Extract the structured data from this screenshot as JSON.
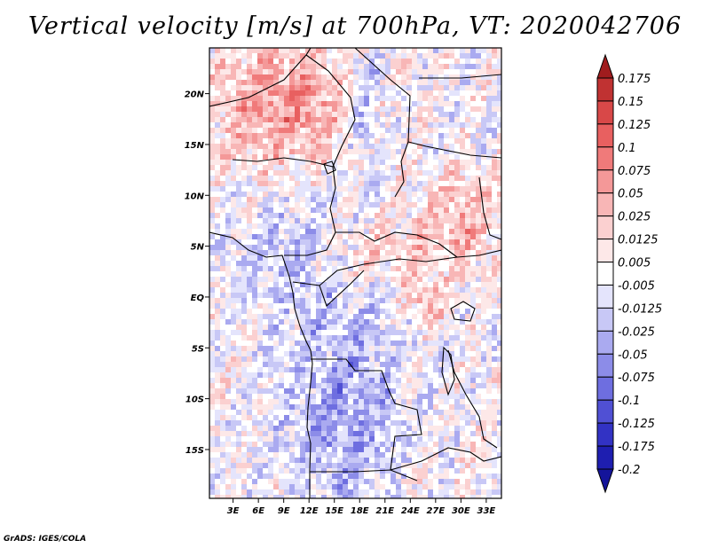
{
  "chart_data": {
    "type": "heatmap",
    "title": "Vertical velocity [m/s] at 700hPa, VT: 2020042706",
    "variable": "Vertical velocity",
    "units": "m/s",
    "level": "700hPa",
    "valid_time": "2020042706",
    "x_ticks": [
      {
        "value": 3,
        "label": "3E"
      },
      {
        "value": 6,
        "label": "6E"
      },
      {
        "value": 9,
        "label": "9E"
      },
      {
        "value": 12,
        "label": "12E"
      },
      {
        "value": 15,
        "label": "15E"
      },
      {
        "value": 18,
        "label": "18E"
      },
      {
        "value": 21,
        "label": "21E"
      },
      {
        "value": 24,
        "label": "24E"
      },
      {
        "value": 27,
        "label": "27E"
      },
      {
        "value": 30,
        "label": "30E"
      },
      {
        "value": 33,
        "label": "33E"
      }
    ],
    "y_ticks": [
      {
        "value": 20,
        "label": "20N"
      },
      {
        "value": 15,
        "label": "15N"
      },
      {
        "value": 10,
        "label": "10N"
      },
      {
        "value": 5,
        "label": "5N"
      },
      {
        "value": 0,
        "label": "EQ"
      },
      {
        "value": -5,
        "label": "5S"
      },
      {
        "value": -10,
        "label": "10S"
      },
      {
        "value": -15,
        "label": "15S"
      }
    ],
    "xlim": [
      0.2,
      34.8
    ],
    "ylim": [
      -19.8,
      24.5
    ],
    "colorbar": {
      "orientation": "vertical",
      "extend": "both",
      "labels": [
        "0.175",
        "0.15",
        "0.125",
        "0.1",
        "0.075",
        "0.05",
        "0.025",
        "0.0125",
        "0.005",
        "-0.005",
        "-0.0125",
        "-0.025",
        "-0.05",
        "-0.075",
        "-0.1",
        "-0.125",
        "-0.175",
        "-0.2"
      ],
      "colors": [
        "#a01c1e",
        "#c03232",
        "#d84848",
        "#e86060",
        "#f07a7a",
        "#f49898",
        "#f8b6b6",
        "#fbd0d0",
        "#fde8e8",
        "#ffffff",
        "#e4e4fc",
        "#c8c8f6",
        "#aaaaf0",
        "#8c8ce8",
        "#6e6ee0",
        "#5050d4",
        "#3232c4",
        "#1e1eb0",
        "#14149a"
      ]
    }
  },
  "credit": "GrADS: IGES/COLA"
}
